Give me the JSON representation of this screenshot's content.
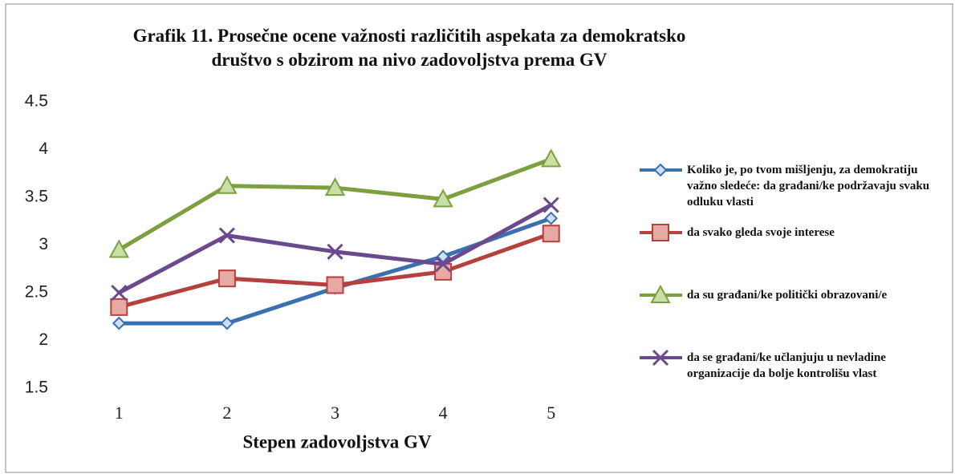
{
  "chart_data": {
    "type": "line",
    "title": "Grafik 11. Prosečne ocene važnosti različitih aspekata za demokratsko društvo s obzirom na nivo zadovoljstva prema GV",
    "x_label": "Stepen zadovoljstva GV",
    "categories": [
      "1",
      "2",
      "3",
      "4",
      "5"
    ],
    "ylim": [
      1.5,
      4.5
    ],
    "yticks": [
      1.5,
      2,
      2.5,
      3,
      3.5,
      4,
      4.5
    ],
    "grid": false,
    "legend": "right",
    "series": [
      {
        "name": "Koliko je, po tvom mišljenju, za demokratiju važno sledeće: da građani/ke podržavaju svaku odluku vlasti",
        "color": "#3a6fb0",
        "marker": "diamond",
        "values": [
          2.18,
          2.18,
          2.55,
          2.88,
          3.28
        ]
      },
      {
        "name": "da svako gleda svoje interese",
        "color": "#b5403c",
        "marker": "square",
        "values": [
          2.35,
          2.65,
          2.58,
          2.72,
          3.12
        ]
      },
      {
        "name": "da su građani/ke politički obrazovani/e",
        "color": "#7ca040",
        "marker": "triangle",
        "values": [
          2.95,
          3.62,
          3.6,
          3.48,
          3.9
        ]
      },
      {
        "name": "da se građani/ke učlanjuju u nevladine organizacije da bolje kontrolišu vlast",
        "color": "#6a4a8c",
        "marker": "x",
        "values": [
          2.5,
          3.1,
          2.93,
          2.8,
          3.42
        ]
      }
    ]
  }
}
